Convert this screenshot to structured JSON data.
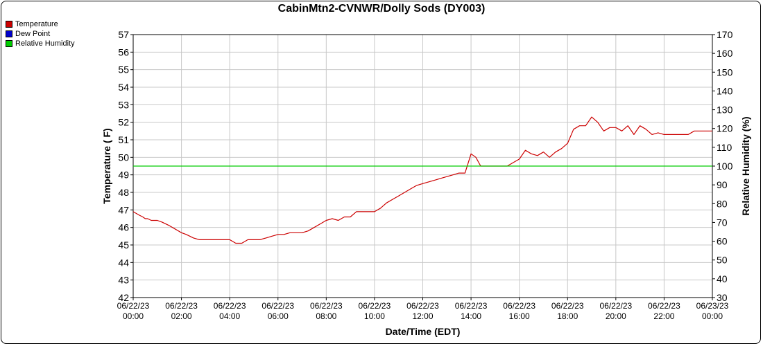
{
  "chart_data": {
    "type": "line",
    "title": "CabinMtn2-CVNWR/Dolly Sods (DY003)",
    "xlabel": "Date/Time (EDT)",
    "ylabel": "Temperature ( F)",
    "y2label": "Relative Humidity (%)",
    "legend": [
      {
        "name": "Temperature",
        "color": "#cc0000"
      },
      {
        "name": "Dew Point",
        "color": "#0000cc"
      },
      {
        "name": "Relative Humidity",
        "color": "#00cc00"
      }
    ],
    "legend_position": "top-left",
    "grid": true,
    "ylim": [
      42,
      57
    ],
    "y2lim": [
      30,
      170
    ],
    "xlim_hours": [
      0,
      24
    ],
    "x_ticks": [
      {
        "date": "06/22/23",
        "time": "00:00"
      },
      {
        "date": "06/22/23",
        "time": "02:00"
      },
      {
        "date": "06/22/23",
        "time": "04:00"
      },
      {
        "date": "06/22/23",
        "time": "06:00"
      },
      {
        "date": "06/22/23",
        "time": "08:00"
      },
      {
        "date": "06/22/23",
        "time": "10:00"
      },
      {
        "date": "06/22/23",
        "time": "12:00"
      },
      {
        "date": "06/22/23",
        "time": "14:00"
      },
      {
        "date": "06/22/23",
        "time": "16:00"
      },
      {
        "date": "06/22/23",
        "time": "18:00"
      },
      {
        "date": "06/22/23",
        "time": "20:00"
      },
      {
        "date": "06/22/23",
        "time": "22:00"
      },
      {
        "date": "06/23/23",
        "time": "00:00"
      }
    ],
    "y_ticks": [
      42,
      43,
      44,
      45,
      46,
      47,
      48,
      49,
      50,
      51,
      52,
      53,
      54,
      55,
      56,
      57
    ],
    "y2_ticks": [
      30,
      40,
      50,
      60,
      70,
      80,
      90,
      100,
      110,
      120,
      130,
      140,
      150,
      160,
      170
    ],
    "series": [
      {
        "name": "Temperature",
        "axis": "left",
        "color": "#cc0000",
        "points": [
          [
            0,
            46.9
          ],
          [
            0.25,
            46.7
          ],
          [
            0.4,
            46.6
          ],
          [
            0.5,
            46.5
          ],
          [
            0.6,
            46.5
          ],
          [
            0.75,
            46.4
          ],
          [
            1,
            46.4
          ],
          [
            1.2,
            46.3
          ],
          [
            1.5,
            46.1
          ],
          [
            1.75,
            45.9
          ],
          [
            2,
            45.7
          ],
          [
            2.2,
            45.6
          ],
          [
            2.5,
            45.4
          ],
          [
            2.75,
            45.3
          ],
          [
            3,
            45.3
          ],
          [
            3.25,
            45.3
          ],
          [
            3.5,
            45.3
          ],
          [
            3.75,
            45.3
          ],
          [
            4,
            45.3
          ],
          [
            4.25,
            45.1
          ],
          [
            4.5,
            45.1
          ],
          [
            4.75,
            45.3
          ],
          [
            5,
            45.3
          ],
          [
            5.25,
            45.3
          ],
          [
            5.5,
            45.4
          ],
          [
            5.75,
            45.5
          ],
          [
            6,
            45.6
          ],
          [
            6.25,
            45.6
          ],
          [
            6.5,
            45.7
          ],
          [
            6.75,
            45.7
          ],
          [
            7,
            45.7
          ],
          [
            7.25,
            45.8
          ],
          [
            7.5,
            46.0
          ],
          [
            7.75,
            46.2
          ],
          [
            8,
            46.4
          ],
          [
            8.25,
            46.5
          ],
          [
            8.5,
            46.4
          ],
          [
            8.75,
            46.6
          ],
          [
            9,
            46.6
          ],
          [
            9.25,
            46.9
          ],
          [
            9.5,
            46.9
          ],
          [
            9.75,
            46.9
          ],
          [
            10,
            46.9
          ],
          [
            10.25,
            47.1
          ],
          [
            10.5,
            47.4
          ],
          [
            10.75,
            47.6
          ],
          [
            11,
            47.8
          ],
          [
            11.25,
            48.0
          ],
          [
            11.5,
            48.2
          ],
          [
            11.75,
            48.4
          ],
          [
            12,
            48.5
          ],
          [
            12.25,
            48.6
          ],
          [
            12.5,
            48.7
          ],
          [
            12.75,
            48.8
          ],
          [
            13,
            48.9
          ],
          [
            13.25,
            49.0
          ],
          [
            13.5,
            49.1
          ],
          [
            13.75,
            49.1
          ],
          [
            14,
            50.2
          ],
          [
            14.2,
            50.0
          ],
          [
            14.4,
            49.5
          ],
          [
            14.75,
            49.5
          ],
          [
            15,
            49.5
          ],
          [
            15.25,
            49.5
          ],
          [
            15.5,
            49.5
          ],
          [
            15.75,
            49.7
          ],
          [
            16,
            49.9
          ],
          [
            16.25,
            50.4
          ],
          [
            16.5,
            50.2
          ],
          [
            16.75,
            50.1
          ],
          [
            17,
            50.3
          ],
          [
            17.25,
            50.0
          ],
          [
            17.5,
            50.3
          ],
          [
            17.75,
            50.5
          ],
          [
            18,
            50.8
          ],
          [
            18.25,
            51.6
          ],
          [
            18.5,
            51.8
          ],
          [
            18.75,
            51.8
          ],
          [
            19,
            52.3
          ],
          [
            19.25,
            52.0
          ],
          [
            19.5,
            51.5
          ],
          [
            19.75,
            51.7
          ],
          [
            20,
            51.7
          ],
          [
            20.25,
            51.5
          ],
          [
            20.5,
            51.8
          ],
          [
            20.75,
            51.3
          ],
          [
            21,
            51.8
          ],
          [
            21.25,
            51.6
          ],
          [
            21.5,
            51.3
          ],
          [
            21.75,
            51.4
          ],
          [
            22,
            51.3
          ],
          [
            22.25,
            51.3
          ],
          [
            22.5,
            51.3
          ],
          [
            22.75,
            51.3
          ],
          [
            23,
            51.3
          ],
          [
            23.25,
            51.5
          ],
          [
            23.5,
            51.5
          ],
          [
            23.75,
            51.5
          ],
          [
            24,
            51.5
          ]
        ]
      },
      {
        "name": "Relative Humidity",
        "axis": "right",
        "color": "#00cc00",
        "points": [
          [
            0,
            100
          ],
          [
            24,
            100
          ]
        ]
      }
    ]
  }
}
